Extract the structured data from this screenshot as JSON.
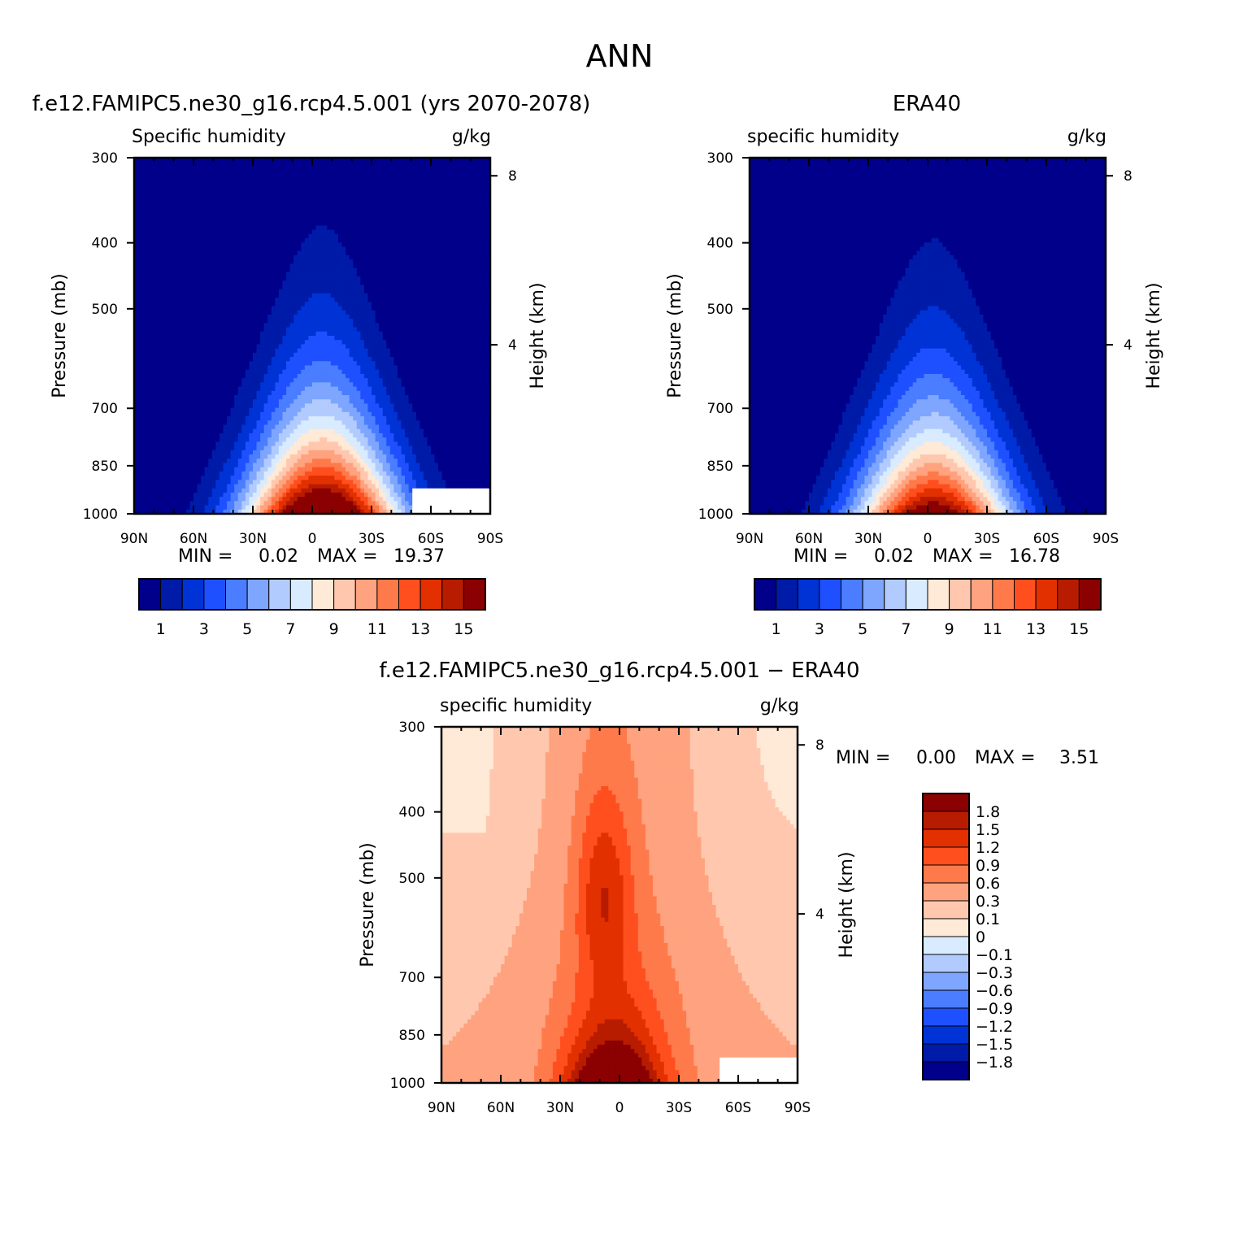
{
  "figure_title": "ANN",
  "colors": {
    "humidity_levels": [
      "#00008b",
      "#001ba8",
      "#0033d6",
      "#1f50ff",
      "#4a7dff",
      "#7ea6ff",
      "#b2cbff",
      "#d8ebff",
      "#ffe9d7",
      "#ffc8ae",
      "#ffa27f",
      "#ff7a4b",
      "#ff4f1f",
      "#e33000",
      "#b81c00",
      "#8b0000"
    ],
    "diff_levels": [
      "#00008b",
      "#001ba8",
      "#0033d6",
      "#1f50ff",
      "#4a7dff",
      "#7ea6ff",
      "#b2cbff",
      "#d8ebff",
      "#ffe9d7",
      "#ffc8ae",
      "#ffa27f",
      "#ff7a4b",
      "#ff4f1f",
      "#e33000",
      "#b81c00",
      "#8b0000"
    ]
  },
  "chart_data": [
    {
      "id": "model",
      "type": "heatmap",
      "title": "f.e12.FAMIPC5.ne30_g16.rcp4.5.001 (yrs 2070-2078)",
      "variable": "Specific humidity",
      "units": "g/kg",
      "ylabel": "Pressure (mb)",
      "ylabel_right": "Height (km)",
      "x_ticks": [
        "90N",
        "60N",
        "30N",
        "0",
        "30S",
        "60S",
        "90S"
      ],
      "y_ticks": [
        300,
        400,
        500,
        700,
        850,
        1000
      ],
      "y_log": true,
      "ylim": [
        1000,
        300
      ],
      "height_ticks": [
        8,
        4
      ],
      "min_label": "MIN =",
      "min": "0.02",
      "max_label": "MAX =",
      "max": "19.37",
      "colorbar_labels": [
        "1",
        "3",
        "5",
        "7",
        "9",
        "11",
        "13",
        "15"
      ],
      "peak_latitude": -5,
      "peak_value": 19.37,
      "masked_region": {
        "lat": [
          -50,
          -90
        ],
        "pressure": [
          920,
          1000
        ]
      }
    },
    {
      "id": "obs",
      "type": "heatmap",
      "title": "ERA40",
      "variable": "specific humidity",
      "units": "g/kg",
      "ylabel": "Pressure (mb)",
      "ylabel_right": "Height (km)",
      "x_ticks": [
        "90N",
        "60N",
        "30N",
        "0",
        "30S",
        "60S",
        "90S"
      ],
      "y_ticks": [
        300,
        400,
        500,
        700,
        850,
        1000
      ],
      "y_log": true,
      "ylim": [
        1000,
        300
      ],
      "height_ticks": [
        8,
        4
      ],
      "min_label": "MIN =",
      "min": "0.02",
      "max_label": "MAX =",
      "max": "16.78",
      "colorbar_labels": [
        "1",
        "3",
        "5",
        "7",
        "9",
        "11",
        "13",
        "15"
      ],
      "peak_latitude": -3,
      "peak_value": 16.78
    },
    {
      "id": "diff",
      "type": "heatmap",
      "title": "f.e12.FAMIPC5.ne30_g16.rcp4.5.001 − ERA40",
      "variable": "specific humidity",
      "units": "g/kg",
      "ylabel": "Pressure (mb)",
      "ylabel_right": "Height (km)",
      "x_ticks": [
        "90N",
        "60N",
        "30N",
        "0",
        "30S",
        "60S",
        "90S"
      ],
      "y_ticks": [
        300,
        400,
        500,
        700,
        850,
        1000
      ],
      "y_log": true,
      "ylim": [
        1000,
        300
      ],
      "height_ticks": [
        8,
        4
      ],
      "min_label": "MIN =",
      "min": "0.00",
      "max_label": "MAX =",
      "max": "3.51",
      "colorbar_labels": [
        "1.8",
        "1.5",
        "1.2",
        "0.9",
        "0.6",
        "0.3",
        "0.1",
        "0",
        "−0.1",
        "−0.3",
        "−0.6",
        "−0.9",
        "−1.2",
        "−1.5",
        "−1.8"
      ],
      "contour_levels": [
        -1.8,
        -1.5,
        -1.2,
        -0.9,
        -0.6,
        -0.3,
        -0.1,
        0,
        0.1,
        0.3,
        0.6,
        0.9,
        1.2,
        1.5,
        1.8
      ],
      "masked_region": {
        "lat": [
          -50,
          -90
        ],
        "pressure": [
          920,
          1000
        ]
      }
    }
  ]
}
